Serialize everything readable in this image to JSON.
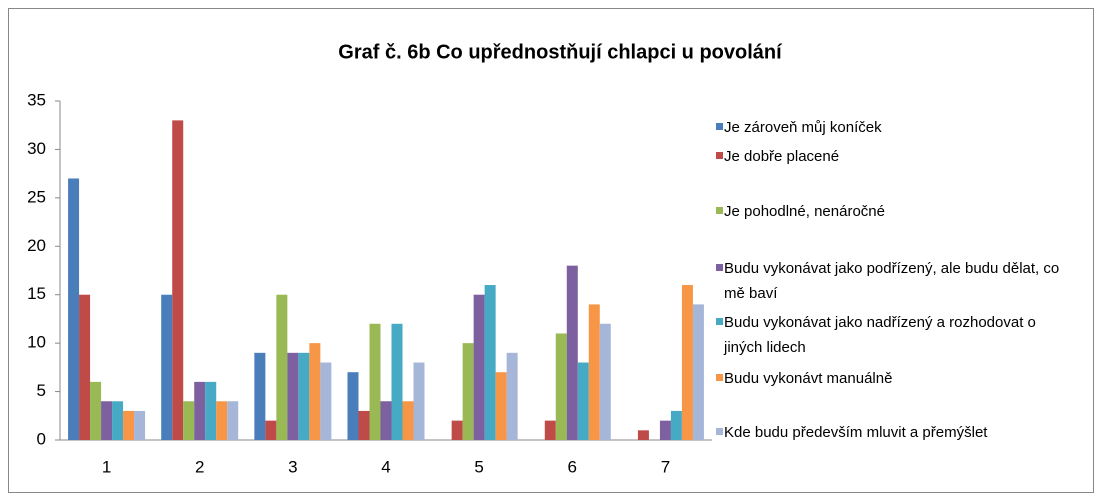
{
  "chart_data": {
    "type": "bar",
    "title": "Graf č. 6b Co upřednostňují chlapci u povolání",
    "categories": [
      "1",
      "2",
      "3",
      "4",
      "5",
      "6",
      "7"
    ],
    "series": [
      {
        "name": "Je zároveň můj koníček",
        "color": "#4a7ebb",
        "values": [
          27,
          15,
          9,
          7,
          0,
          0,
          0
        ]
      },
      {
        "name": "Je dobře placené",
        "color": "#be4b48",
        "values": [
          15,
          33,
          2,
          3,
          2,
          2,
          1
        ]
      },
      {
        "name": "Je pohodlné, nenáročné",
        "color": "#98b954",
        "values": [
          6,
          4,
          15,
          12,
          10,
          11,
          0
        ]
      },
      {
        "name": "Budu vykonávat jako podřízený, ale budu dělat, co mě baví",
        "color": "#7d60a0",
        "values": [
          4,
          6,
          9,
          4,
          15,
          18,
          2
        ]
      },
      {
        "name": "Budu vykonávat jako nadřízený a rozhodovat o jiných lidech",
        "color": "#46aac5",
        "values": [
          4,
          6,
          9,
          12,
          16,
          8,
          3
        ]
      },
      {
        "name": "Budu vykonávt manuálně",
        "color": "#f79646",
        "values": [
          3,
          4,
          10,
          4,
          7,
          14,
          16
        ]
      },
      {
        "name": "Kde budu především mluvit a přemýšlet",
        "color": "#a5b6d8",
        "values": [
          3,
          4,
          8,
          8,
          9,
          12,
          14
        ]
      }
    ],
    "ylim": [
      0,
      35
    ],
    "yticks": [
      0,
      5,
      10,
      15,
      20,
      25,
      30,
      35
    ],
    "grid": false,
    "legend": "right"
  }
}
